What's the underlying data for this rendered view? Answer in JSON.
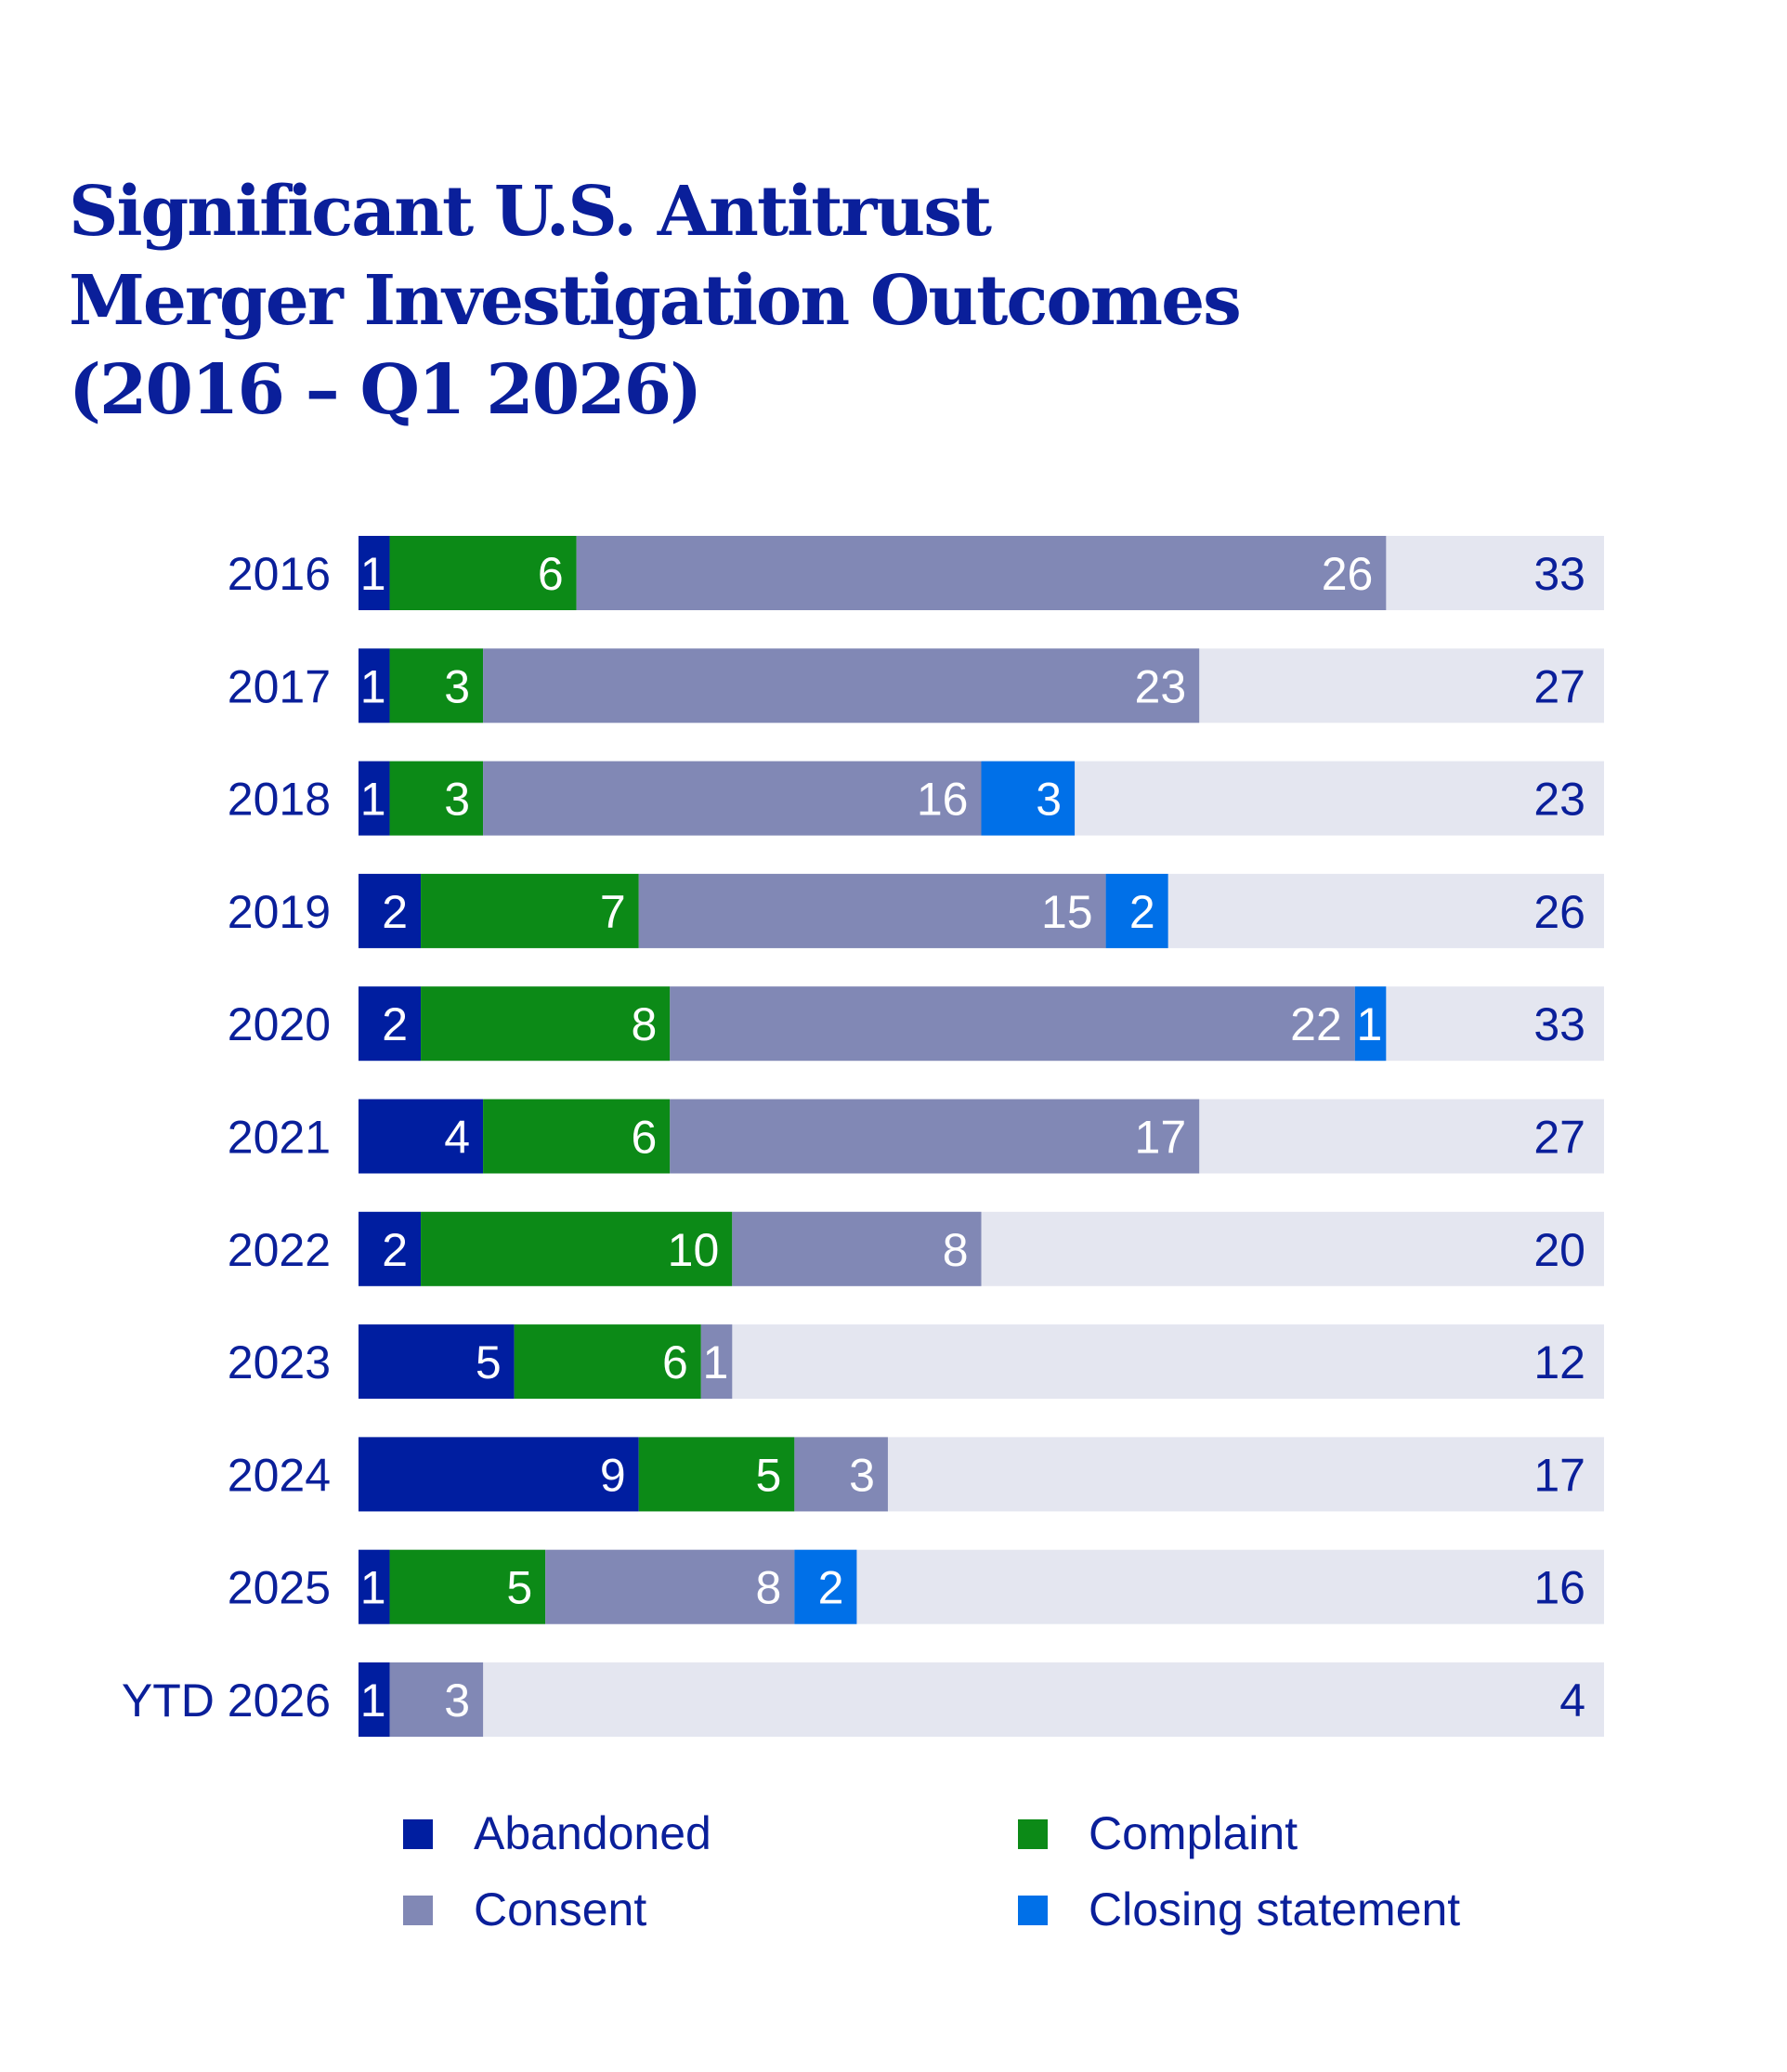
{
  "chart_data": {
    "type": "bar",
    "orientation": "horizontal",
    "stacked": true,
    "title_lines": [
      "Significant U.S. Antitrust",
      "Merger Investigation Outcomes",
      "(2016 – Q1 2026)"
    ],
    "categories": [
      "2016",
      "2017",
      "2018",
      "2019",
      "2020",
      "2021",
      "2022",
      "2023",
      "2024",
      "2025",
      "YTD 2026"
    ],
    "series": [
      {
        "name": "Abandoned",
        "color": "#001ea0",
        "values": [
          1,
          1,
          1,
          2,
          2,
          4,
          2,
          5,
          9,
          1,
          1
        ]
      },
      {
        "name": "Complaint",
        "color": "#0c8a17",
        "values": [
          6,
          3,
          3,
          7,
          8,
          6,
          10,
          6,
          5,
          5,
          0
        ]
      },
      {
        "name": "Consent",
        "color": "#8188b5",
        "values": [
          26,
          23,
          16,
          15,
          22,
          17,
          8,
          1,
          3,
          8,
          3
        ]
      },
      {
        "name": "Closing statement",
        "color": "#0070e8",
        "values": [
          0,
          0,
          3,
          2,
          1,
          0,
          0,
          0,
          0,
          2,
          0
        ]
      }
    ],
    "totals": [
      33,
      27,
      23,
      26,
      33,
      27,
      20,
      12,
      17,
      16,
      4
    ],
    "xlim": [
      0,
      40
    ],
    "background_bar_color": "#e4e6f0",
    "text_color": "#0a1f9a",
    "legend_placement": "bottom",
    "grid": false
  }
}
